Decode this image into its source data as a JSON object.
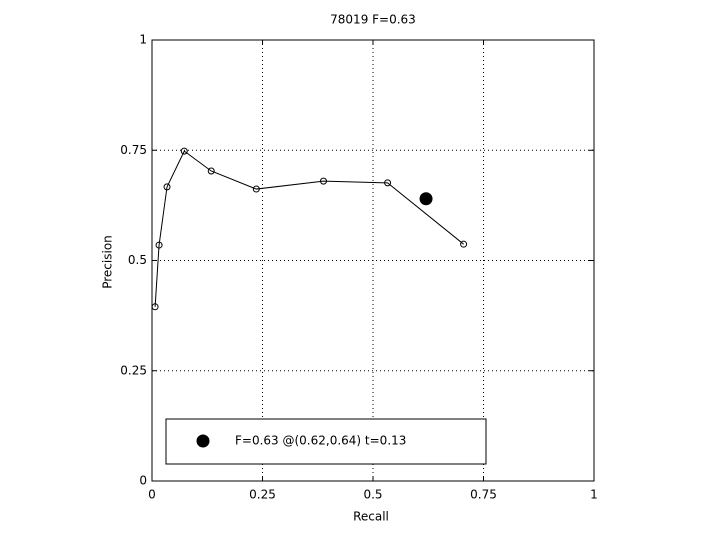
{
  "chart_data": {
    "type": "line",
    "title": "78019 F=0.63",
    "xlabel": "Recall",
    "ylabel": "Precision",
    "xlim": [
      0,
      1
    ],
    "ylim": [
      0,
      1
    ],
    "xticks": [
      0,
      0.25,
      0.5,
      0.75,
      1
    ],
    "yticks": [
      0,
      0.25,
      0.5,
      0.75,
      1
    ],
    "grid": true,
    "legend": "lower left",
    "series": [
      {
        "color": "#000000",
        "marker": "open-circle",
        "x": [
          0.007,
          0.016,
          0.034,
          0.073,
          0.134,
          0.236,
          0.388,
          0.533,
          0.705
        ],
        "values": [
          0.395,
          0.535,
          0.667,
          0.748,
          0.703,
          0.662,
          0.68,
          0.676,
          0.537
        ]
      },
      {
        "name": "F=0.63 @(0.62,0.64) t=0.13",
        "color": "#000000",
        "marker": "filled-circle",
        "x": [
          0.62
        ],
        "values": [
          0.64
        ]
      }
    ]
  }
}
